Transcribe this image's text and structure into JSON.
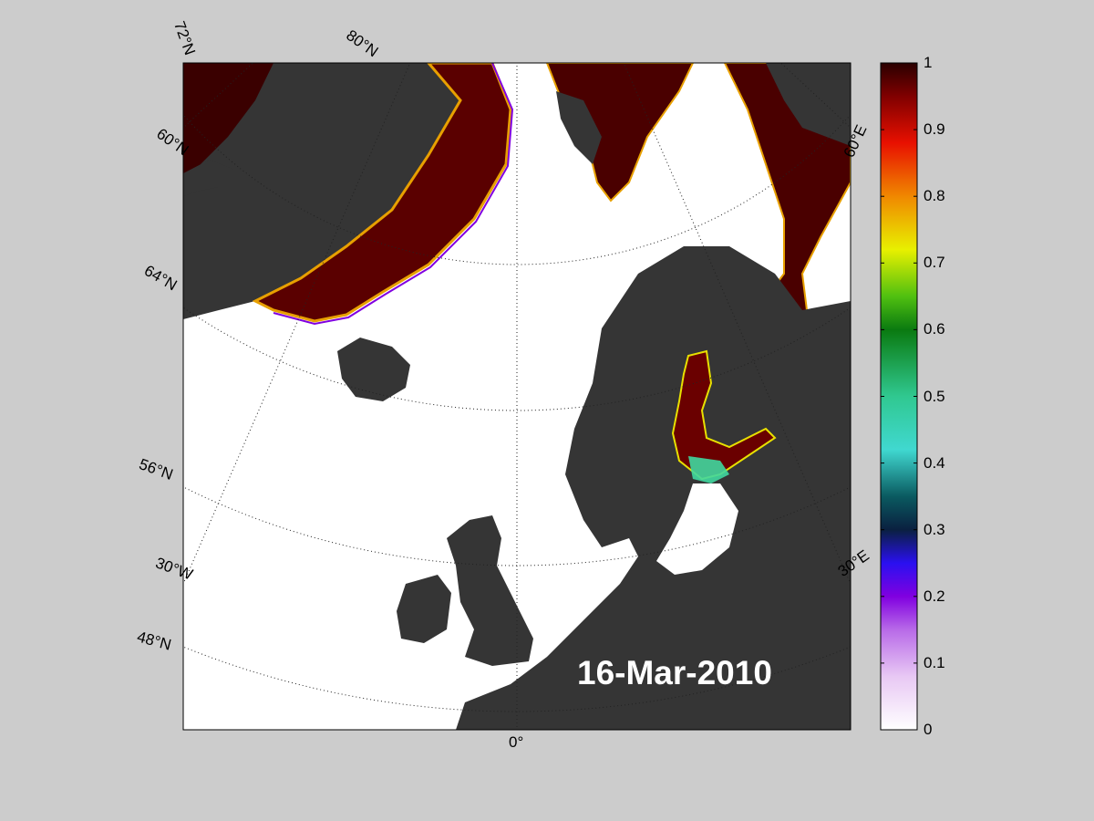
{
  "date": "16-Mar-2010",
  "map_labels": {
    "lat_72": "72°N",
    "lat_80": "80°N",
    "lat_60": "60°N",
    "lat_64": "64°N",
    "lat_56": "56°N",
    "lat_48": "48°N",
    "lon_30w": "30°W",
    "lon_0": "0°",
    "lon_30e": "30°E",
    "lon_60e": "60°E"
  },
  "colorbar": {
    "ticks": [
      "1",
      "0.9",
      "0.8",
      "0.7",
      "0.6",
      "0.5",
      "0.4",
      "0.3",
      "0.2",
      "0.1",
      "0"
    ],
    "min": 0,
    "max": 1
  },
  "colors": {
    "ocean": "#ffffff",
    "land": "#353535",
    "land_secondary": "#7a7a7a",
    "background": "#cccccc",
    "ice_full": "#3a0000"
  }
}
